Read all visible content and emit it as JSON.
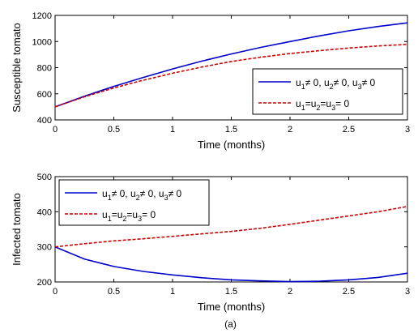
{
  "chart_data": [
    {
      "type": "line",
      "xlabel": "Time (months)",
      "ylabel": "Susceptible  tomato",
      "xlim": [
        0,
        3
      ],
      "ylim": [
        400,
        1200
      ],
      "xticks": [
        0,
        0.5,
        1,
        1.5,
        2,
        2.5,
        3
      ],
      "xtick_labels": [
        "0",
        "0.5",
        "1",
        "1.5",
        "2",
        "2.5",
        "3"
      ],
      "yticks": [
        400,
        600,
        800,
        1000,
        1200
      ],
      "ytick_labels": [
        "400",
        "600",
        "800",
        "1000",
        "1200"
      ],
      "grid": false,
      "legend_position": "lower-right",
      "series": [
        {
          "name": "u1≠ 0, u2≠ 0, u3≠ 0",
          "legend": {
            "base1": "u",
            "sub1": "1",
            "rest1": "≠ 0, u",
            "sub2": "2",
            "rest2": "≠ 0, u",
            "sub3": "3",
            "rest3": "≠ 0"
          },
          "color": "#0000cc",
          "style": "solid",
          "x": [
            0,
            0.25,
            0.5,
            0.75,
            1,
            1.25,
            1.5,
            1.75,
            2,
            2.25,
            2.5,
            2.75,
            3
          ],
          "y": [
            500,
            582,
            657,
            725,
            790,
            850,
            905,
            955,
            1000,
            1043,
            1082,
            1115,
            1143
          ]
        },
        {
          "name": "u1=u2=u3= 0",
          "legend": {
            "base1": "u",
            "sub1": "1",
            "rest1": "=u",
            "sub2": "2",
            "rest2": "=u",
            "sub3": "3",
            "rest3": "= 0"
          },
          "color": "#cc0000",
          "style": "dashed",
          "x": [
            0,
            0.25,
            0.5,
            0.75,
            1,
            1.25,
            1.5,
            1.75,
            2,
            2.25,
            2.5,
            2.75,
            3
          ],
          "y": [
            500,
            577,
            645,
            703,
            757,
            805,
            847,
            880,
            908,
            930,
            950,
            966,
            978
          ]
        }
      ]
    },
    {
      "type": "line",
      "xlabel": "Time (months)",
      "ylabel": "Infected tomato",
      "caption": "(a)",
      "xlim": [
        0,
        3
      ],
      "ylim": [
        200,
        500
      ],
      "xticks": [
        0,
        0.5,
        1,
        1.5,
        2,
        2.5,
        3
      ],
      "xtick_labels": [
        "0",
        "0.5",
        "1",
        "1.5",
        "2",
        "2.5",
        "3"
      ],
      "yticks": [
        200,
        300,
        400,
        500
      ],
      "ytick_labels": [
        "200",
        "300",
        "400",
        "500"
      ],
      "grid": false,
      "legend_position": "top-left",
      "series": [
        {
          "name": "u1≠ 0, u2≠ 0, u3≠ 0",
          "legend": {
            "base1": "u",
            "sub1": "1",
            "rest1": "≠ 0, u",
            "sub2": "2",
            "rest2": "≠ 0, u",
            "sub3": "3",
            "rest3": "≠ 0"
          },
          "color": "#0000cc",
          "style": "solid",
          "x": [
            0,
            0.25,
            0.5,
            0.75,
            1,
            1.25,
            1.5,
            1.75,
            2,
            2.25,
            2.5,
            2.75,
            3
          ],
          "y": [
            300,
            265,
            244,
            230,
            220,
            212,
            206,
            203,
            201,
            202,
            206,
            213,
            225
          ]
        },
        {
          "name": "u1=u2=u3= 0",
          "legend": {
            "base1": "u",
            "sub1": "1",
            "rest1": "=u",
            "sub2": "2",
            "rest2": "=u",
            "sub3": "3",
            "rest3": "= 0"
          },
          "color": "#cc0000",
          "style": "dashed",
          "x": [
            0,
            0.25,
            0.5,
            0.75,
            1,
            1.25,
            1.5,
            1.75,
            2,
            2.25,
            2.5,
            2.75,
            3
          ],
          "y": [
            300,
            309,
            317,
            323,
            330,
            337,
            344,
            353,
            364,
            376,
            388,
            400,
            415
          ]
        }
      ]
    }
  ]
}
